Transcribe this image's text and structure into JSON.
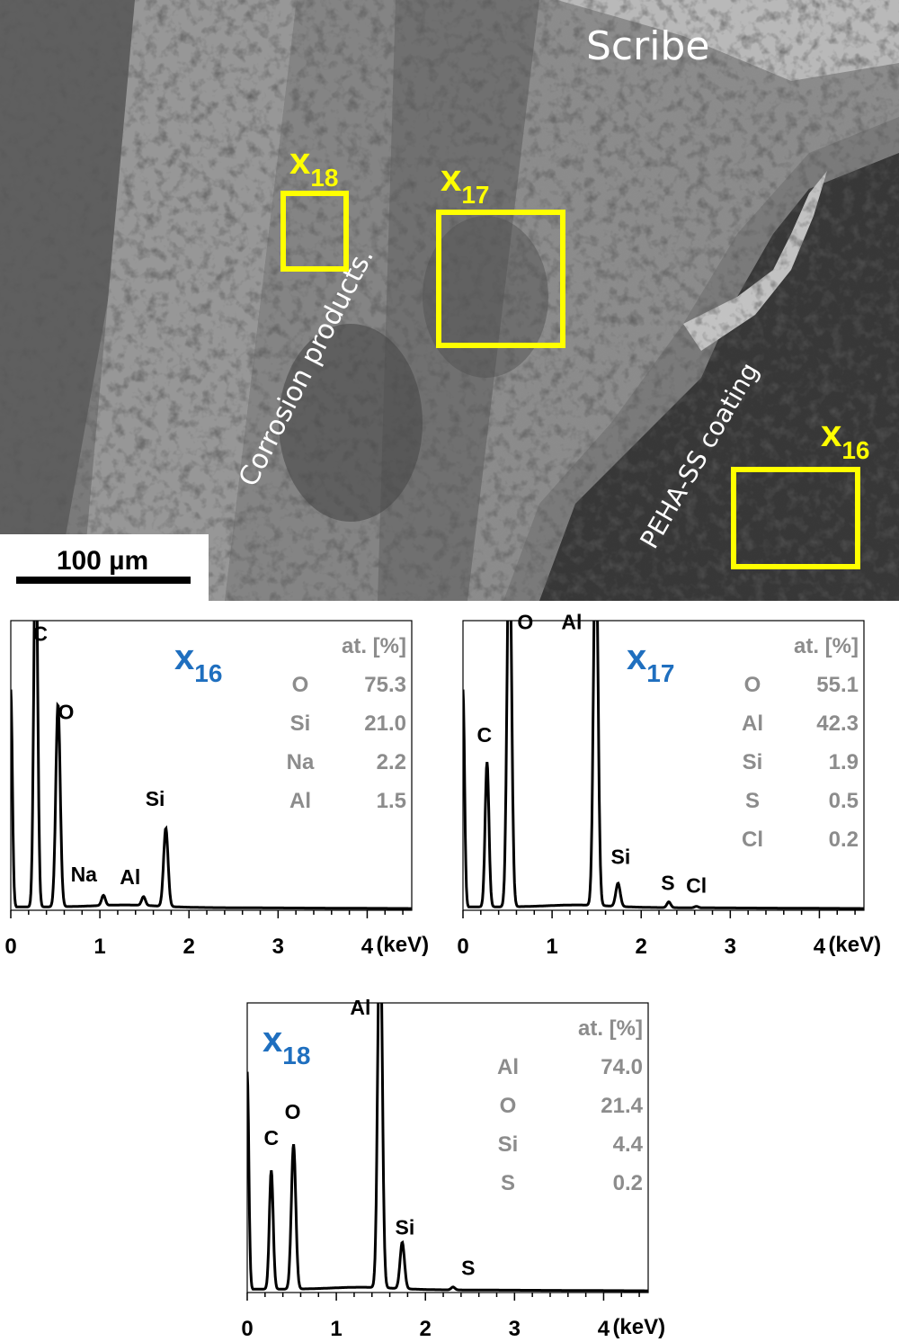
{
  "micrograph": {
    "labels": {
      "scribe": "Scribe",
      "corrosion": "Corrosion products.",
      "coating": "PEHA-SS coating"
    },
    "scale_bar": "100 µm",
    "regions": [
      {
        "base": "x",
        "sub": "16"
      },
      {
        "base": "x",
        "sub": "17"
      },
      {
        "base": "x",
        "sub": "18"
      }
    ],
    "colors": {
      "region_box": "#ffff00",
      "text": "#ffffff"
    }
  },
  "chart_data": [
    {
      "type": "line",
      "name_base": "x",
      "name_sub": "16",
      "xlabel": "(keV)",
      "xlim": [
        0,
        4.5
      ],
      "ylim": [
        0,
        1
      ],
      "xticks": [
        0,
        1,
        2,
        3,
        4
      ],
      "xtick_labels": [
        "0",
        "1",
        "2",
        "3",
        "4"
      ],
      "peaks": [
        {
          "label": "C",
          "x": 0.28,
          "y": 1.35,
          "w": 0.03
        },
        {
          "label": "O",
          "x": 0.53,
          "y": 0.7,
          "w": 0.035
        },
        {
          "label": "Na",
          "x": 1.04,
          "y": 0.035,
          "w": 0.03
        },
        {
          "label": "Al",
          "x": 1.49,
          "y": 0.03,
          "w": 0.03
        },
        {
          "label": "Si",
          "x": 1.74,
          "y": 0.27,
          "w": 0.035
        }
      ],
      "peak_labels": [
        {
          "text": "C",
          "x": 0.33,
          "y": 0.93
        },
        {
          "text": "O",
          "x": 0.62,
          "y": 0.66
        },
        {
          "text": "Na",
          "x": 0.82,
          "y": 0.1
        },
        {
          "text": "Al",
          "x": 1.34,
          "y": 0.09
        },
        {
          "text": "Si",
          "x": 1.62,
          "y": 0.36
        }
      ],
      "composition": {
        "header": "at. [%]",
        "rows": [
          {
            "element": "O",
            "value": "75.3"
          },
          {
            "element": "Si",
            "value": "21.0"
          },
          {
            "element": "Na",
            "value": "2.2"
          },
          {
            "element": "Al",
            "value": "1.5"
          }
        ]
      }
    },
    {
      "type": "line",
      "name_base": "x",
      "name_sub": "17",
      "xlabel": "(keV)",
      "xlim": [
        0,
        4.5
      ],
      "ylim": [
        0,
        1
      ],
      "xticks": [
        0,
        1,
        2,
        3,
        4
      ],
      "xtick_labels": [
        "0",
        "1",
        "2",
        "3",
        "4"
      ],
      "peaks": [
        {
          "label": "C",
          "x": 0.27,
          "y": 0.5,
          "w": 0.03
        },
        {
          "label": "O",
          "x": 0.52,
          "y": 1.35,
          "w": 0.035
        },
        {
          "label": "Al",
          "x": 1.49,
          "y": 1.35,
          "w": 0.035
        },
        {
          "label": "Si",
          "x": 1.74,
          "y": 0.08,
          "w": 0.035
        },
        {
          "label": "S",
          "x": 2.31,
          "y": 0.02,
          "w": 0.03
        },
        {
          "label": "Cl",
          "x": 2.62,
          "y": 0.005,
          "w": 0.03
        }
      ],
      "peak_labels": [
        {
          "text": "O",
          "x": 0.7,
          "y": 0.97
        },
        {
          "text": "Al",
          "x": 1.22,
          "y": 0.97
        },
        {
          "text": "C",
          "x": 0.24,
          "y": 0.58
        },
        {
          "text": "Si",
          "x": 1.77,
          "y": 0.16
        },
        {
          "text": "S",
          "x": 2.3,
          "y": 0.07
        },
        {
          "text": "Cl",
          "x": 2.62,
          "y": 0.06
        }
      ],
      "composition": {
        "header": "at. [%]",
        "rows": [
          {
            "element": "O",
            "value": "55.1"
          },
          {
            "element": "Al",
            "value": "42.3"
          },
          {
            "element": "Si",
            "value": "1.9"
          },
          {
            "element": "S",
            "value": "0.5"
          },
          {
            "element": "Cl",
            "value": "0.2"
          }
        ]
      }
    },
    {
      "type": "line",
      "name_base": "x",
      "name_sub": "18",
      "xlabel": "(keV)",
      "xlim": [
        0,
        4.5
      ],
      "ylim": [
        0,
        1
      ],
      "xticks": [
        0,
        1,
        2,
        3,
        4
      ],
      "xtick_labels": [
        "0",
        "1",
        "2",
        "3",
        "4"
      ],
      "peaks": [
        {
          "label": "C",
          "x": 0.27,
          "y": 0.41,
          "w": 0.03
        },
        {
          "label": "O",
          "x": 0.52,
          "y": 0.5,
          "w": 0.035
        },
        {
          "label": "Al",
          "x": 1.49,
          "y": 1.35,
          "w": 0.035
        },
        {
          "label": "Si",
          "x": 1.74,
          "y": 0.16,
          "w": 0.035
        },
        {
          "label": "S",
          "x": 2.31,
          "y": 0.01,
          "w": 0.03
        }
      ],
      "peak_labels": [
        {
          "text": "C",
          "x": 0.27,
          "y": 0.51
        },
        {
          "text": "O",
          "x": 0.51,
          "y": 0.6
        },
        {
          "text": "Al",
          "x": 1.27,
          "y": 0.96
        },
        {
          "text": "Si",
          "x": 1.77,
          "y": 0.2
        },
        {
          "text": "S",
          "x": 2.48,
          "y": 0.06
        }
      ],
      "composition": {
        "header": "at. [%]",
        "rows": [
          {
            "element": "Al",
            "value": "74.0"
          },
          {
            "element": "O",
            "value": "21.4"
          },
          {
            "element": "Si",
            "value": "4.4"
          },
          {
            "element": "S",
            "value": "0.2"
          }
        ]
      }
    }
  ]
}
